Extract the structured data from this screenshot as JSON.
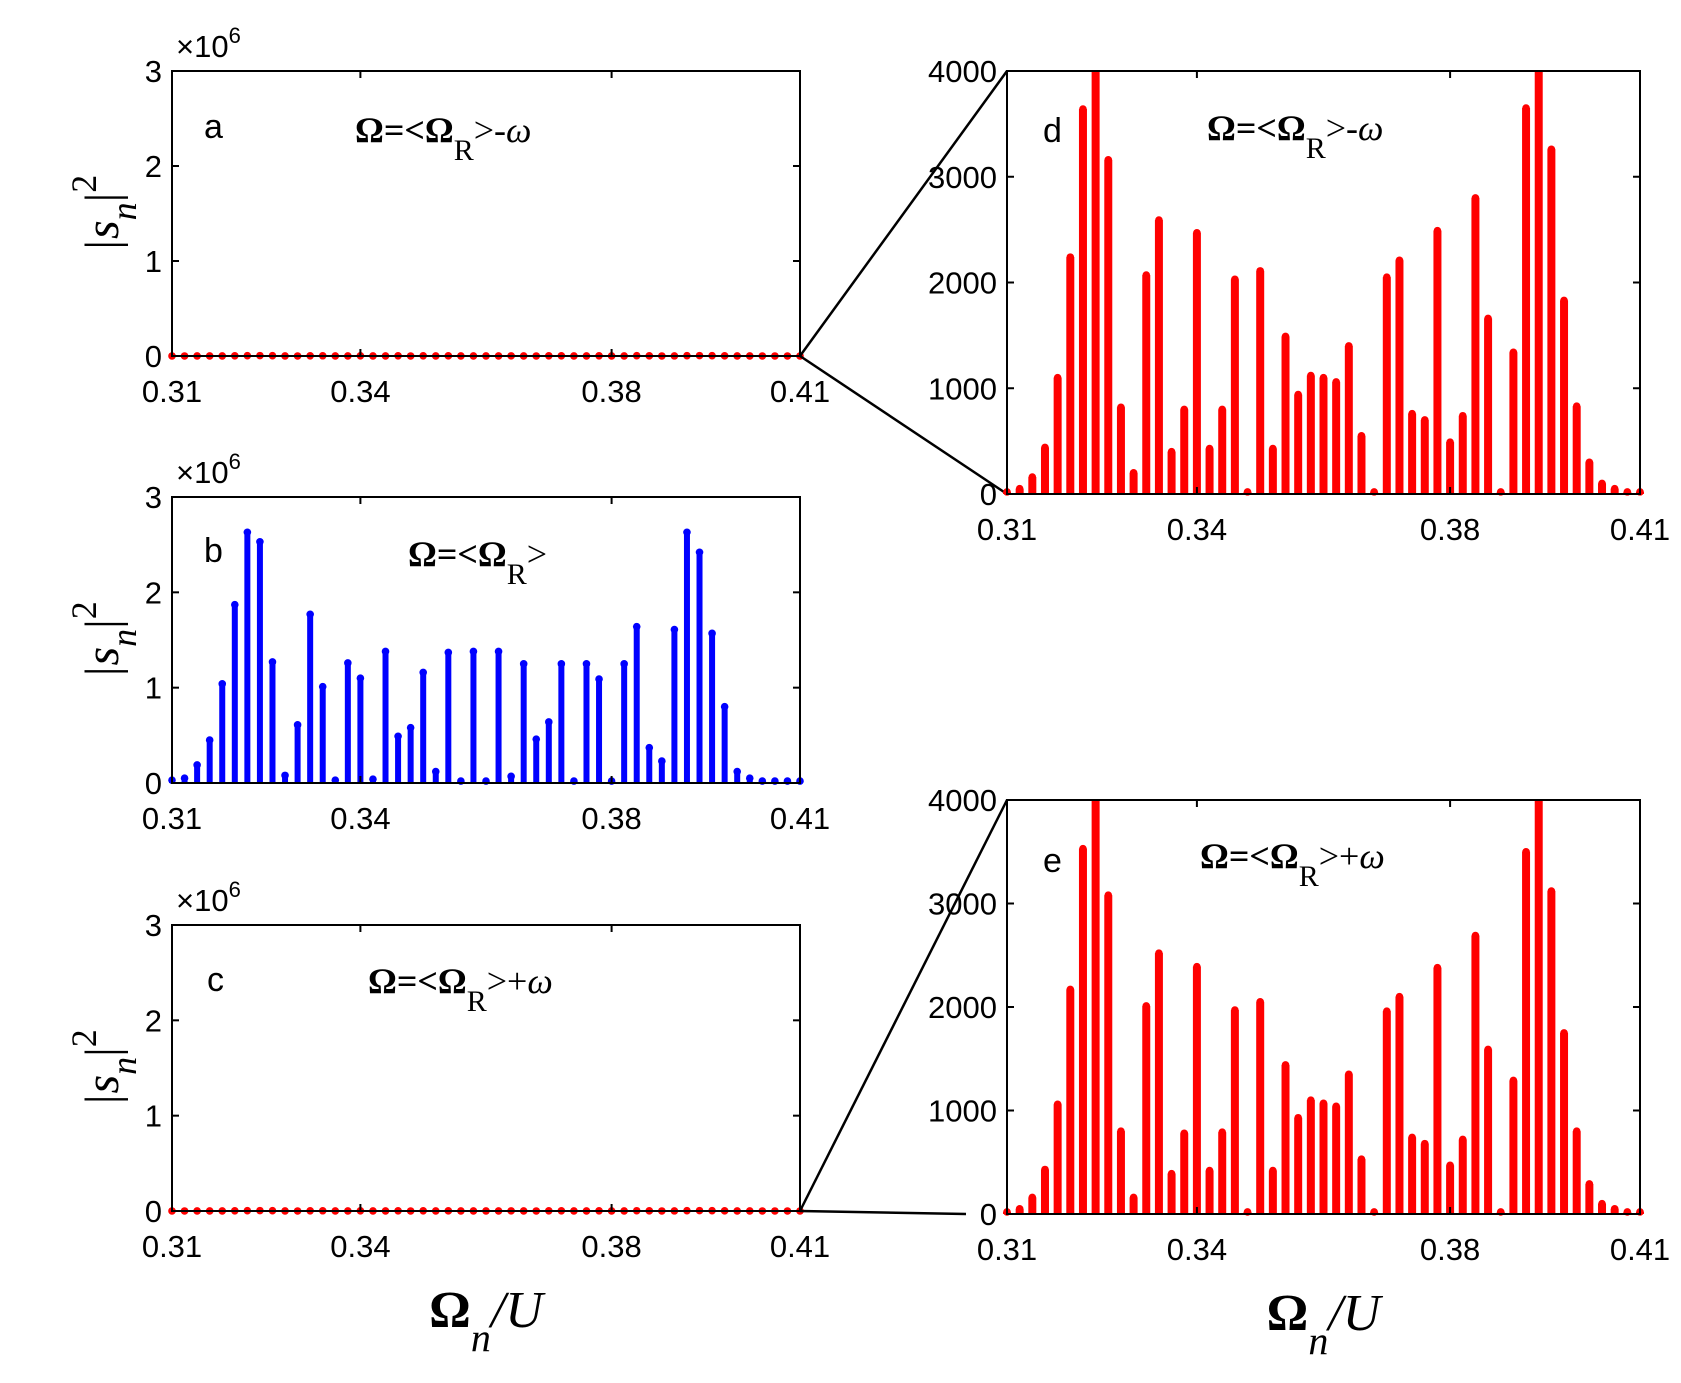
{
  "chart_data": [
    {
      "id": "a",
      "type": "bar",
      "panel_label": "a",
      "annotation": {
        "prefix": "Ω=<Ω",
        "sub": "R",
        "suffix": ">-",
        "omega": "ω"
      },
      "ylabel": {
        "main": "|s",
        "sub": "n",
        "sup": "2",
        "bar": "|"
      },
      "xlabel": null,
      "exponent": {
        "times": "×10",
        "power": "6"
      },
      "xlim": [
        0.31,
        0.41
      ],
      "ylim": [
        0,
        3
      ],
      "xticks": [
        "0.31",
        "0.34",
        "0.38",
        "0.41"
      ],
      "yticks": [
        "0",
        "1",
        "2",
        "3"
      ],
      "color": "#ff0000",
      "x": [
        0.31,
        0.312,
        0.314,
        0.316,
        0.318,
        0.32,
        0.322,
        0.324,
        0.326,
        0.328,
        0.33,
        0.332,
        0.334,
        0.336,
        0.338,
        0.34,
        0.342,
        0.344,
        0.346,
        0.348,
        0.35,
        0.352,
        0.354,
        0.356,
        0.358,
        0.36,
        0.362,
        0.364,
        0.366,
        0.368,
        0.37,
        0.372,
        0.374,
        0.376,
        0.378,
        0.38,
        0.382,
        0.384,
        0.386,
        0.388,
        0.39,
        0.392,
        0.394,
        0.396,
        0.398,
        0.4,
        0.402,
        0.404,
        0.406,
        0.408,
        0.41
      ],
      "values": [
        2e-05,
        5e-05,
        0.00015,
        0.00044,
        0.0011,
        0.0022,
        0.0036,
        0.004,
        0.0032,
        0.0008,
        8e-05,
        0.0021,
        0.0026,
        0.0004,
        0.0008,
        0.0025,
        0.0004,
        0.0008,
        0.002,
        2e-05,
        0.0021,
        0.0004,
        0.0015,
        0.00095,
        0.0011,
        0.0011,
        0.00105,
        0.0014,
        0.00055,
        2e-05,
        0.002,
        0.0022,
        0.00075,
        0.0007,
        0.0025,
        0.0005,
        0.00075,
        0.0028,
        0.0017,
        2e-05,
        0.0013,
        0.0036,
        0.004,
        0.0033,
        0.0018,
        0.00075,
        0.0003,
        0.0001,
        5e-05,
        2e-05,
        2e-05
      ]
    },
    {
      "id": "b",
      "type": "bar",
      "panel_label": "b",
      "annotation": {
        "prefix": "Ω=<Ω",
        "sub": "R",
        "suffix": ">",
        "omega": ""
      },
      "ylabel": {
        "main": "|s",
        "sub": "n",
        "sup": "2",
        "bar": "|"
      },
      "xlabel": null,
      "exponent": {
        "times": "×10",
        "power": "6"
      },
      "xlim": [
        0.31,
        0.41
      ],
      "ylim": [
        0,
        3
      ],
      "xticks": [
        "0.31",
        "0.34",
        "0.38",
        "0.41"
      ],
      "yticks": [
        "0",
        "1",
        "2",
        "3"
      ],
      "color": "#0000ff",
      "x": [
        0.31,
        0.312,
        0.314,
        0.316,
        0.318,
        0.32,
        0.322,
        0.324,
        0.326,
        0.328,
        0.33,
        0.332,
        0.334,
        0.336,
        0.338,
        0.34,
        0.342,
        0.344,
        0.346,
        0.348,
        0.35,
        0.352,
        0.354,
        0.356,
        0.358,
        0.36,
        0.362,
        0.364,
        0.366,
        0.368,
        0.37,
        0.372,
        0.374,
        0.376,
        0.378,
        0.38,
        0.382,
        0.384,
        0.386,
        0.388,
        0.39,
        0.392,
        0.394,
        0.396,
        0.398,
        0.4,
        0.402,
        0.404,
        0.406,
        0.408,
        0.41
      ],
      "values": [
        0.03,
        0.05,
        0.19,
        0.45,
        1.04,
        1.87,
        2.63,
        2.53,
        1.27,
        0.08,
        0.61,
        1.77,
        1.01,
        0.03,
        1.26,
        1.1,
        0.04,
        1.38,
        0.49,
        0.58,
        1.16,
        0.12,
        1.37,
        0.02,
        1.38,
        0.02,
        1.38,
        0.07,
        1.25,
        0.46,
        0.64,
        1.25,
        0.02,
        1.25,
        1.09,
        0.02,
        1.25,
        1.64,
        0.37,
        0.23,
        1.61,
        2.63,
        2.42,
        1.57,
        0.8,
        0.12,
        0.05,
        0.02,
        0.02,
        0.02,
        0.02
      ]
    },
    {
      "id": "c",
      "type": "bar",
      "panel_label": "c",
      "annotation": {
        "prefix": "Ω=<Ω",
        "sub": "R",
        "suffix": ">+",
        "omega": "ω"
      },
      "ylabel": {
        "main": "|s",
        "sub": "n",
        "sup": "2",
        "bar": "|"
      },
      "xlabel": {
        "main": "Ω",
        "sub": "n",
        "rest": "/U"
      },
      "exponent": {
        "times": "×10",
        "power": "6"
      },
      "xlim": [
        0.31,
        0.41
      ],
      "ylim": [
        0,
        3
      ],
      "xticks": [
        "0.31",
        "0.34",
        "0.38",
        "0.41"
      ],
      "yticks": [
        "0",
        "1",
        "2",
        "3"
      ],
      "color": "#ff0000",
      "x": [
        0.31,
        0.312,
        0.314,
        0.316,
        0.318,
        0.32,
        0.322,
        0.324,
        0.326,
        0.328,
        0.33,
        0.332,
        0.334,
        0.336,
        0.338,
        0.34,
        0.342,
        0.344,
        0.346,
        0.348,
        0.35,
        0.352,
        0.354,
        0.356,
        0.358,
        0.36,
        0.362,
        0.364,
        0.366,
        0.368,
        0.37,
        0.372,
        0.374,
        0.376,
        0.378,
        0.38,
        0.382,
        0.384,
        0.386,
        0.388,
        0.39,
        0.392,
        0.394,
        0.396,
        0.398,
        0.4,
        0.402,
        0.404,
        0.406,
        0.408,
        0.41
      ],
      "values": [
        2e-05,
        5e-05,
        0.00015,
        0.00043,
        0.00106,
        0.00218,
        0.0035,
        0.004,
        0.0031,
        0.0008,
        8e-05,
        0.002,
        0.0025,
        0.0004,
        0.0008,
        0.0024,
        0.0004,
        0.0008,
        0.002,
        2e-05,
        0.00205,
        0.0004,
        0.00145,
        0.00093,
        0.0011,
        0.00107,
        0.001,
        0.00135,
        0.00053,
        2e-05,
        0.002,
        0.0021,
        0.00075,
        0.00065,
        0.0024,
        0.0005,
        0.0007,
        0.0027,
        0.0016,
        2e-05,
        0.0013,
        0.0035,
        0.004,
        0.0031,
        0.00175,
        0.0008,
        0.0003,
        0.0001,
        5e-05,
        2e-05,
        2e-05
      ]
    },
    {
      "id": "d",
      "type": "bar",
      "panel_label": "d",
      "annotation": {
        "prefix": "Ω=<Ω",
        "sub": "R",
        "suffix": ">-",
        "omega": "ω"
      },
      "ylabel": null,
      "xlabel": null,
      "exponent": null,
      "xlim": [
        0.31,
        0.41
      ],
      "ylim": [
        0,
        4000
      ],
      "xticks": [
        "0.31",
        "0.34",
        "0.38",
        "0.41"
      ],
      "yticks": [
        "0",
        "1000",
        "2000",
        "3000",
        "4000"
      ],
      "color": "#ff0000",
      "x": [
        0.31,
        0.312,
        0.314,
        0.316,
        0.318,
        0.32,
        0.322,
        0.324,
        0.326,
        0.328,
        0.33,
        0.332,
        0.334,
        0.336,
        0.338,
        0.34,
        0.342,
        0.344,
        0.346,
        0.348,
        0.35,
        0.352,
        0.354,
        0.356,
        0.358,
        0.36,
        0.362,
        0.364,
        0.366,
        0.368,
        0.37,
        0.372,
        0.374,
        0.376,
        0.378,
        0.38,
        0.382,
        0.384,
        0.386,
        0.388,
        0.39,
        0.392,
        0.394,
        0.396,
        0.398,
        0.4,
        0.402,
        0.404,
        0.406,
        0.408,
        0.41
      ],
      "values": [
        20,
        50,
        160,
        440,
        1100,
        2240,
        3640,
        4000,
        3160,
        820,
        200,
        2070,
        2590,
        400,
        800,
        2470,
        430,
        800,
        2030,
        20,
        2110,
        430,
        1490,
        940,
        1120,
        1100,
        1060,
        1400,
        550,
        20,
        2050,
        2210,
        760,
        700,
        2490,
        490,
        740,
        2800,
        1660,
        20,
        1340,
        3650,
        4000,
        3260,
        1830,
        830,
        300,
        100,
        50,
        20,
        20
      ]
    },
    {
      "id": "e",
      "type": "bar",
      "panel_label": "e",
      "annotation": {
        "prefix": "Ω=<Ω",
        "sub": "R",
        "suffix": ">+",
        "omega": "ω"
      },
      "ylabel": null,
      "xlabel": {
        "main": "Ω",
        "sub": "n",
        "rest": "/U"
      },
      "exponent": null,
      "xlim": [
        0.31,
        0.41
      ],
      "ylim": [
        0,
        4000
      ],
      "xticks": [
        "0.31",
        "0.34",
        "0.38",
        "0.41"
      ],
      "yticks": [
        "0",
        "1000",
        "2000",
        "3000",
        "4000"
      ],
      "color": "#ff0000",
      "x": [
        0.31,
        0.312,
        0.314,
        0.316,
        0.318,
        0.32,
        0.322,
        0.324,
        0.326,
        0.328,
        0.33,
        0.332,
        0.334,
        0.336,
        0.338,
        0.34,
        0.342,
        0.344,
        0.346,
        0.348,
        0.35,
        0.352,
        0.354,
        0.356,
        0.358,
        0.36,
        0.362,
        0.364,
        0.366,
        0.368,
        0.37,
        0.372,
        0.374,
        0.376,
        0.378,
        0.38,
        0.382,
        0.384,
        0.386,
        0.388,
        0.39,
        0.392,
        0.394,
        0.396,
        0.398,
        0.4,
        0.402,
        0.404,
        0.406,
        0.408,
        0.41
      ],
      "values": [
        20,
        50,
        160,
        430,
        1060,
        2170,
        3530,
        4000,
        3080,
        800,
        160,
        2010,
        2520,
        390,
        780,
        2390,
        420,
        790,
        1970,
        20,
        2050,
        420,
        1440,
        930,
        1100,
        1070,
        1040,
        1350,
        530,
        20,
        1960,
        2100,
        740,
        680,
        2380,
        470,
        720,
        2690,
        1590,
        20,
        1290,
        3500,
        4000,
        3120,
        1750,
        800,
        290,
        100,
        50,
        20,
        20
      ]
    }
  ]
}
